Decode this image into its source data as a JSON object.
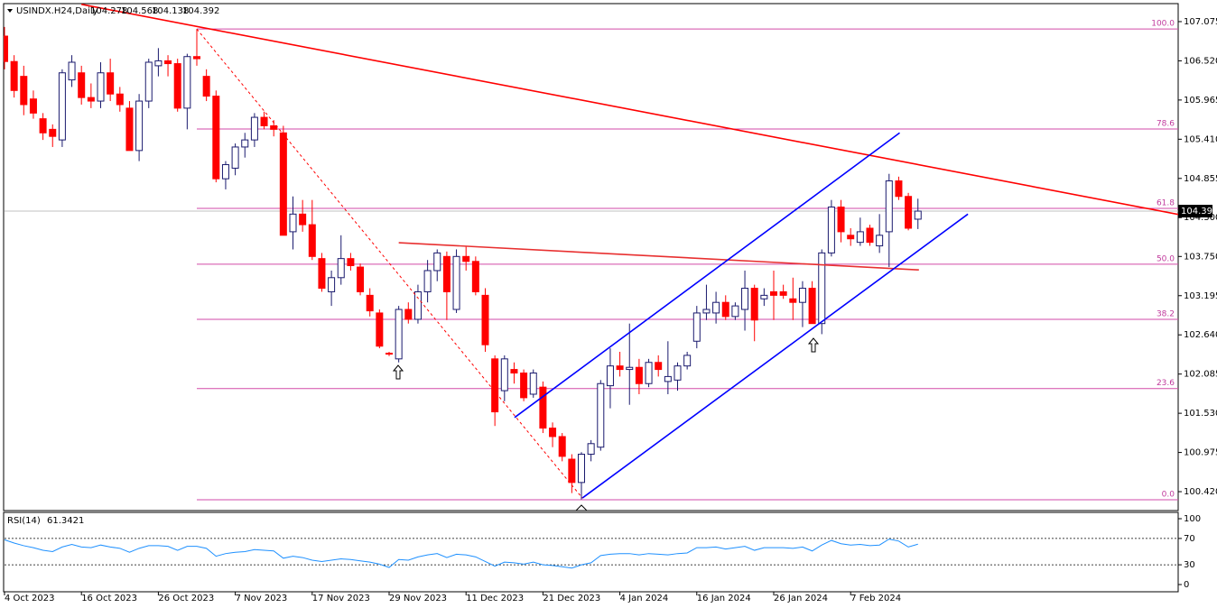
{
  "chart_data": {
    "type": "candlestick",
    "title": "USINDX.H24,Daily",
    "categories": [
      "4 Oct 2023",
      null,
      null,
      null,
      null,
      null,
      null,
      null,
      "16 Oct 2023",
      null,
      null,
      null,
      null,
      null,
      null,
      null,
      "26 Oct 2023",
      null,
      null,
      null,
      null,
      null,
      null,
      null,
      "7 Nov 2023",
      null,
      null,
      null,
      null,
      null,
      null,
      null,
      "17 Nov 2023",
      null,
      null,
      null,
      null,
      null,
      null,
      null,
      "29 Nov 2023",
      null,
      null,
      null,
      null,
      null,
      null,
      null,
      "11 Dec 2023",
      null,
      null,
      null,
      null,
      null,
      null,
      null,
      "21 Dec 2023",
      null,
      null,
      null,
      null,
      null,
      null,
      null,
      "4 Jan 2024",
      null,
      null,
      null,
      null,
      null,
      null,
      null,
      "16 Jan 2024",
      null,
      null,
      null,
      null,
      null,
      null,
      null,
      "26 Jan 2024",
      null,
      null,
      null,
      null,
      null,
      null,
      null,
      "7 Feb 2024",
      null,
      null,
      null,
      null,
      null,
      null,
      null
    ],
    "open": [
      106.87,
      106.51,
      106.3,
      105.98,
      105.7,
      105.55,
      105.4,
      106.25,
      106.35,
      106.0,
      105.95,
      106.35,
      106.05,
      105.85,
      105.25,
      105.95,
      106.45,
      106.52,
      106.48,
      105.85,
      106.58,
      106.3,
      106.02,
      104.85,
      105.0,
      105.3,
      105.4,
      105.72,
      105.6,
      105.5,
      104.1,
      104.35,
      104.2,
      103.72,
      103.25,
      103.45,
      103.72,
      103.6,
      103.2,
      102.95,
      102.38,
      102.3,
      103.0,
      102.86,
      103.25,
      103.55,
      103.75,
      103.0,
      103.75,
      103.68,
      103.2,
      102.3,
      101.85,
      102.15,
      102.1,
      101.8,
      101.9,
      101.32,
      101.2,
      100.88,
      100.55,
      100.95,
      101.05,
      101.92,
      102.2,
      102.15,
      102.18,
      101.95,
      102.25,
      101.98,
      102.0,
      102.2,
      102.55,
      102.95,
      102.95,
      103.1,
      102.9,
      103.0,
      103.3,
      103.15,
      103.25,
      103.25,
      103.15,
      103.1,
      103.3,
      102.8,
      103.8,
      104.45,
      104.05,
      103.95,
      104.15,
      103.9,
      104.1,
      104.82,
      104.6,
      104.278
    ],
    "high": [
      107.0,
      106.6,
      106.45,
      106.1,
      105.78,
      105.62,
      106.4,
      106.6,
      106.45,
      106.2,
      106.5,
      106.55,
      106.15,
      105.95,
      106.05,
      106.55,
      106.7,
      106.6,
      106.55,
      106.62,
      106.97,
      106.4,
      106.1,
      105.1,
      105.35,
      105.5,
      105.78,
      105.8,
      105.68,
      105.6,
      104.6,
      104.55,
      104.55,
      103.8,
      103.55,
      104.05,
      103.8,
      103.65,
      103.3,
      103.0,
      102.4,
      103.05,
      103.1,
      103.35,
      103.7,
      103.85,
      103.82,
      103.85,
      103.9,
      103.75,
      103.3,
      102.35,
      102.35,
      102.25,
      102.15,
      102.15,
      101.98,
      101.4,
      101.25,
      100.95,
      100.98,
      101.15,
      102.0,
      102.45,
      102.4,
      102.8,
      102.3,
      102.3,
      102.35,
      102.55,
      102.25,
      102.4,
      103.05,
      103.35,
      103.25,
      103.2,
      103.1,
      103.55,
      103.35,
      103.3,
      103.55,
      103.35,
      103.45,
      103.4,
      103.4,
      103.85,
      104.55,
      104.55,
      104.15,
      104.3,
      104.2,
      104.35,
      104.92,
      104.88,
      104.65,
      104.568
    ],
    "low": [
      106.4,
      106.0,
      105.75,
      105.7,
      105.4,
      105.3,
      105.3,
      106.15,
      105.9,
      105.85,
      105.85,
      105.95,
      105.8,
      105.25,
      105.1,
      105.85,
      106.3,
      106.3,
      105.8,
      105.55,
      106.45,
      105.95,
      104.8,
      104.7,
      104.9,
      105.15,
      105.3,
      105.55,
      105.45,
      104.05,
      103.85,
      104.1,
      103.7,
      103.25,
      103.05,
      103.35,
      103.55,
      103.2,
      102.9,
      102.45,
      102.34,
      102.25,
      102.8,
      102.8,
      103.1,
      103.4,
      102.85,
      102.95,
      103.55,
      103.2,
      102.4,
      101.35,
      101.7,
      101.95,
      101.7,
      101.75,
      101.25,
      101.05,
      100.85,
      100.4,
      100.31,
      100.85,
      101.0,
      101.6,
      102.05,
      101.65,
      101.8,
      101.9,
      102.05,
      101.8,
      101.85,
      102.15,
      102.45,
      102.85,
      102.8,
      102.85,
      102.85,
      102.7,
      102.55,
      103.05,
      102.85,
      103.15,
      102.85,
      102.75,
      102.8,
      102.65,
      103.75,
      103.95,
      103.9,
      103.9,
      103.9,
      103.8,
      103.6,
      104.55,
      104.12,
      104.138
    ],
    "close": [
      106.51,
      106.1,
      105.9,
      105.78,
      105.5,
      105.45,
      106.35,
      106.5,
      106.0,
      105.95,
      106.35,
      106.05,
      105.9,
      105.25,
      105.95,
      106.5,
      106.52,
      106.48,
      105.85,
      106.58,
      106.55,
      106.02,
      104.85,
      105.05,
      105.3,
      105.4,
      105.72,
      105.6,
      105.55,
      104.05,
      104.35,
      104.2,
      103.75,
      103.3,
      103.45,
      103.72,
      103.62,
      103.25,
      102.98,
      102.48,
      102.37,
      103.0,
      102.86,
      103.25,
      103.55,
      103.8,
      103.25,
      103.75,
      103.68,
      103.25,
      102.5,
      101.55,
      102.3,
      102.1,
      101.75,
      102.1,
      101.32,
      101.2,
      100.92,
      100.55,
      100.95,
      101.1,
      101.95,
      102.2,
      102.15,
      102.18,
      101.95,
      102.25,
      102.15,
      102.05,
      102.2,
      102.35,
      102.95,
      103.0,
      103.1,
      102.9,
      103.05,
      103.3,
      102.85,
      103.2,
      103.2,
      103.2,
      103.1,
      103.3,
      102.8,
      103.8,
      104.45,
      104.1,
      104.0,
      104.1,
      103.95,
      104.05,
      104.82,
      104.6,
      104.15,
      104.392
    ],
    "up_color": "#ffffff",
    "up_border": "#1a1a6e",
    "down_color": "#ff0000",
    "ylim": [
      100.165,
      107.33
    ],
    "yticks": [
      107.075,
      {
        "value": 106.52,
        "label": "106.520"
      },
      105.965,
      {
        "value": 105.41,
        "label": "105.410"
      },
      104.855,
      {
        "value": 104.3,
        "label": "104.300"
      },
      {
        "value": 103.75,
        "label": "103.750"
      },
      103.195,
      {
        "value": 102.64,
        "label": "102.640"
      },
      102.085,
      {
        "value": 101.53,
        "label": "101.530"
      },
      100.975,
      {
        "value": 100.42,
        "label": "100.420"
      }
    ],
    "fib_levels": [
      {
        "label": "100.0",
        "value": 106.97
      },
      {
        "label": "78.6",
        "value": 105.555
      },
      {
        "label": "61.8",
        "value": 104.43
      },
      {
        "label": "50.0",
        "value": 103.64
      },
      {
        "label": "38.2",
        "value": 102.86
      },
      {
        "label": "23.6",
        "value": 101.88
      },
      {
        "label": "0.0",
        "value": 100.305
      }
    ],
    "fib_color": "#d24aa8",
    "trend_lines": [
      {
        "color": "#ff0000",
        "from": [
          8,
          107.32
        ],
        "to": [
          126.1,
          104.24
        ],
        "dashed": false
      },
      {
        "color": "#e83030",
        "from": [
          41,
          103.945
        ],
        "to": [
          95.1,
          103.56
        ],
        "dashed": false
      },
      {
        "color": "#0000ff",
        "from": [
          53.05,
          101.47
        ],
        "to": [
          93.1,
          105.5
        ],
        "dashed": false
      },
      {
        "color": "#0000ff",
        "from": [
          60.1,
          100.33
        ],
        "to": [
          100.2,
          104.35
        ],
        "dashed": false
      },
      {
        "color": "#ff0000",
        "from": [
          20,
          106.97
        ],
        "to": [
          60.1,
          100.33
        ],
        "dashed": true
      }
    ],
    "rsi": {
      "title": "RSI(14)",
      "color": "#1e90ff",
      "values": [
        68,
        63,
        59,
        56,
        52,
        50,
        57,
        61,
        57,
        56,
        60,
        57,
        55,
        49,
        55,
        59,
        59,
        58,
        52,
        58,
        58,
        55,
        43,
        47,
        49,
        50,
        53,
        52,
        51,
        40,
        43,
        41,
        37,
        35,
        37,
        39,
        38,
        36,
        34,
        31,
        26,
        38,
        37,
        42,
        45,
        47,
        41,
        46,
        45,
        42,
        35,
        28,
        34,
        33,
        31,
        34,
        30,
        29,
        27,
        25,
        30,
        33,
        44,
        46,
        47,
        47,
        45,
        47,
        46,
        45,
        47,
        48,
        56,
        56,
        57,
        54,
        56,
        58,
        52,
        56,
        56,
        56,
        55,
        57,
        51,
        60,
        67,
        62,
        60,
        61,
        59,
        60,
        69,
        66,
        57,
        61.3421
      ],
      "ylim": [
        0,
        100
      ],
      "yticks": [
        100,
        70,
        30,
        0
      ],
      "levels": [
        70,
        30
      ]
    }
  }
}
